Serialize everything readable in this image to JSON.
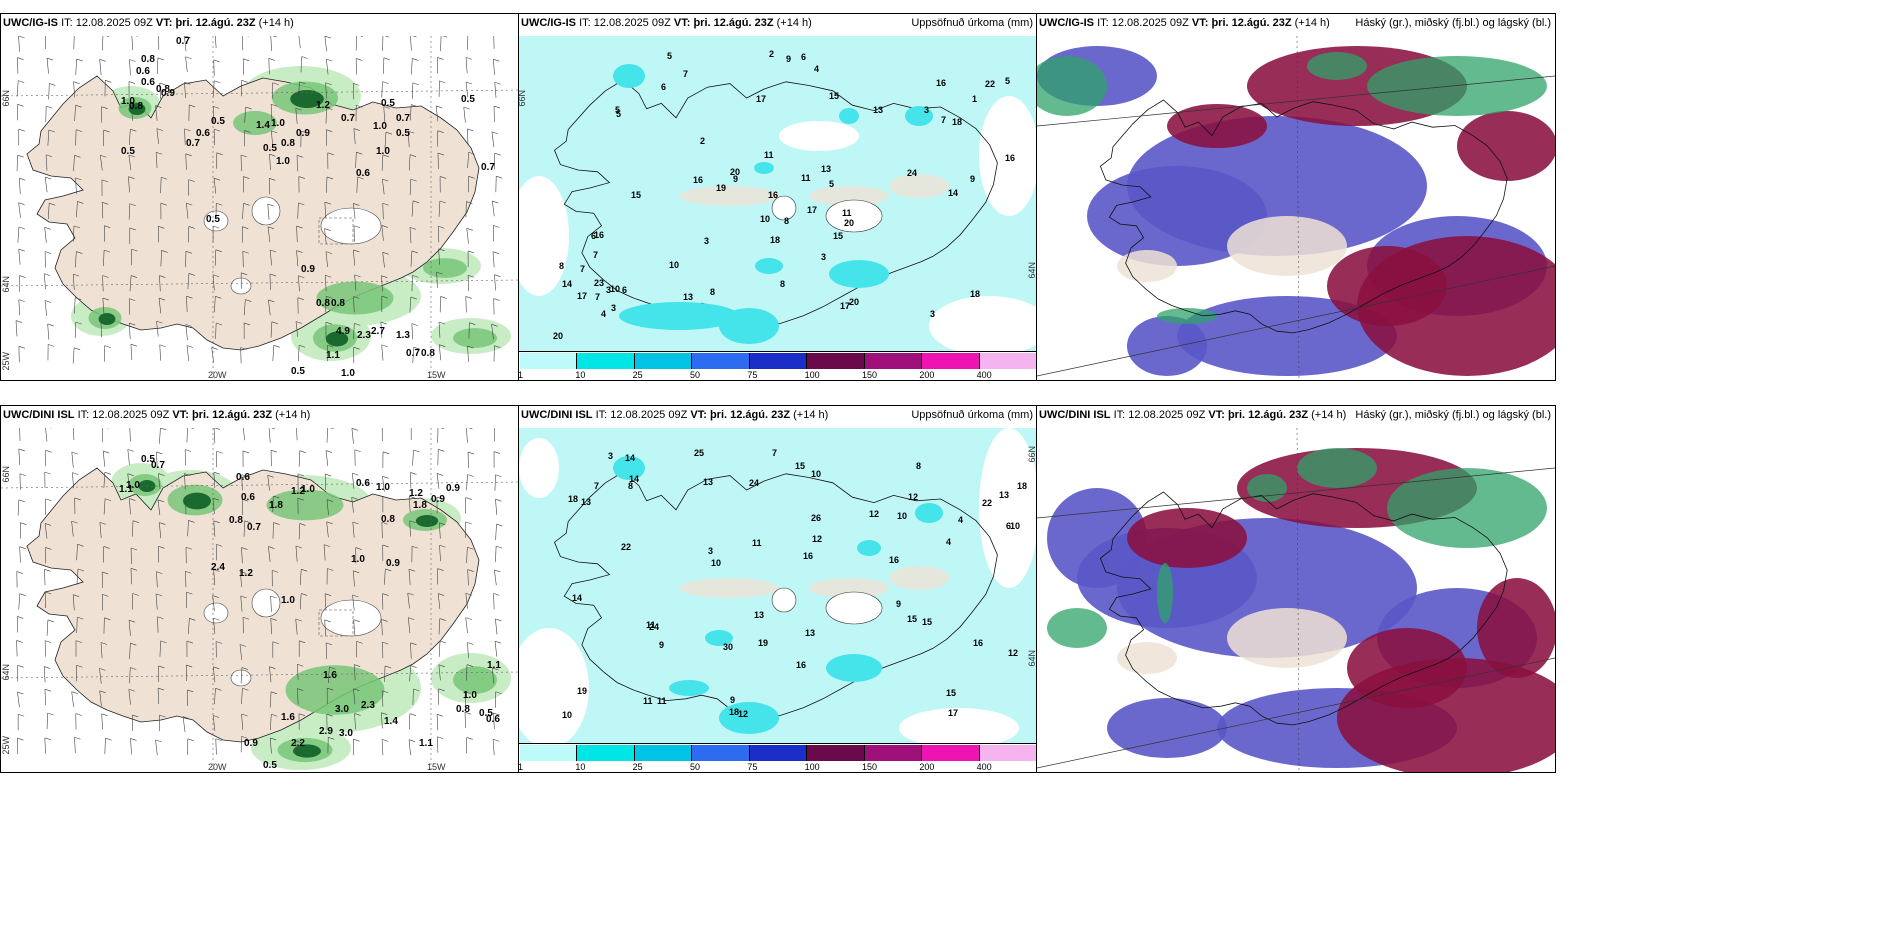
{
  "panels": {
    "top_left": {
      "model": "UWC/IG-IS",
      "it_label": "IT:",
      "it": "12.08.2025 09Z",
      "vt_label": "VT:",
      "vt": "þri. 12.ágú. 23Z",
      "lead": "(+14 h)"
    },
    "top_mid": {
      "model": "UWC/IG-IS",
      "it_label": "IT:",
      "it": "12.08.2025 09Z",
      "vt_label": "VT:",
      "vt": "þri. 12.ágú. 23Z",
      "lead": "(+14 h)",
      "right_title": "Uppsöfnuð úrkoma (mm)"
    },
    "top_right": {
      "model": "UWC/IG-IS",
      "it_label": "IT:",
      "it": "12.08.2025 09Z",
      "vt_label": "VT:",
      "vt": "þri. 12.ágú. 23Z",
      "lead": "(+14 h)",
      "right_title": "Háský (gr.), miðský (fj.bl.) og lágský (bl.)"
    },
    "bot_left": {
      "model": "UWC/DINI ISL",
      "it_label": "IT:",
      "it": "12.08.2025 09Z",
      "vt_label": "VT:",
      "vt": "þri. 12.ágú. 23Z",
      "lead": "(+14 h)"
    },
    "bot_mid": {
      "model": "UWC/DINI ISL",
      "it_label": "IT:",
      "it": "12.08.2025 09Z",
      "vt_label": "VT:",
      "vt": "þri. 12.ágú. 23Z",
      "lead": "(+14 h)",
      "right_title": "Uppsöfnuð úrkoma (mm)"
    },
    "bot_right": {
      "model": "UWC/DINI ISL",
      "it_label": "IT:",
      "it": "12.08.2025 09Z",
      "vt_label": "VT:",
      "vt": "þri. 12.ágú. 23Z",
      "lead": "(+14 h)",
      "right_title": "Háský (gr.), miðský (fj.bl.) og lágský (bl.)"
    }
  },
  "axes": {
    "lat66": "66N",
    "lat64": "64N",
    "lon25": "25W",
    "lon20": "20W",
    "lon15": "15W"
  },
  "colorbar": {
    "labels": [
      "1",
      "10",
      "25",
      "50",
      "75",
      "100",
      "150",
      "200",
      "400"
    ],
    "colors": [
      "#bdfafa",
      "#00e6e6",
      "#00c3e6",
      "#2d6bf0",
      "#1c2ec8",
      "#6a0a4a",
      "#a0107a",
      "#ee14b4",
      "#f5b4f0"
    ]
  },
  "colors": {
    "land": "#efe2d5",
    "green_light": "#c8ecc4",
    "green_mid": "#78c678",
    "green_dark": "#1a6a30",
    "precip_light": "#bff7f7",
    "precip_mid": "#44e4ea",
    "high_cloud": "#2fa36a",
    "mid_cloud": "#8a1040",
    "low_cloud": "#5a58c8"
  },
  "top_left_values": [
    "0.7",
    "0.8",
    "0.6",
    "0.6",
    "0.8",
    "0.9",
    "1.0",
    "0.8",
    "0.5",
    "0.7",
    "0.6",
    "0.5",
    "1.4",
    "1.0",
    "0.5",
    "0.8",
    "0.9",
    "1.2",
    "0.7",
    "1.0",
    "0.5",
    "1.0",
    "0.6",
    "1.0",
    "0.5",
    "0.7",
    "0.5",
    "0.5",
    "0.7",
    "0.9",
    "0.8",
    "0.8",
    "4.9",
    "2.3",
    "2.7",
    "1.3",
    "1.1",
    "0.7",
    "0.8",
    "1.0",
    "0.5"
  ],
  "bot_left_values": [
    "0.5",
    "0.7",
    "1.0",
    "1.1",
    "0.6",
    "1.2",
    "0.6",
    "0.8",
    "0.7",
    "1.8",
    "0.6",
    "1.0",
    "1.8",
    "0.9",
    "1.2",
    "0.8",
    "0.9",
    "1.0",
    "2.4",
    "1.0",
    "0.9",
    "1.2",
    "1.0",
    "1.6",
    "3.0",
    "2.3",
    "1.4",
    "2.9",
    "3.0",
    "2.2",
    "0.9",
    "0.5",
    "1.0",
    "0.8",
    "0.5",
    "0.6",
    "1.1",
    "1.1",
    "1.6"
  ],
  "top_mid_values": [
    "6",
    "9",
    "9",
    "3",
    "7",
    "5",
    "5",
    "13",
    "3",
    "22",
    "3",
    "7",
    "5",
    "5",
    "8",
    "4",
    "3",
    "7",
    "6",
    "17",
    "16",
    "20",
    "24",
    "11",
    "10",
    "18",
    "10",
    "17",
    "19",
    "16",
    "17",
    "18",
    "8",
    "5",
    "3",
    "15",
    "8",
    "20",
    "16",
    "20",
    "23",
    "17",
    "16",
    "15",
    "14",
    "18",
    "13",
    "14",
    "11",
    "20",
    "16",
    "15",
    "13",
    "8",
    "10",
    "7",
    "9",
    "11",
    "7",
    "6",
    "6",
    "3",
    "4",
    "2",
    "2",
    "1"
  ],
  "bot_mid_values": [
    "7",
    "10",
    "16",
    "24",
    "18",
    "9",
    "9",
    "10",
    "13",
    "13",
    "15",
    "26",
    "30",
    "22",
    "18",
    "17",
    "13",
    "4",
    "7",
    "14",
    "25",
    "19",
    "12",
    "15",
    "11",
    "10",
    "16",
    "8",
    "14",
    "12",
    "13",
    "15",
    "12",
    "16",
    "24",
    "22",
    "18",
    "11",
    "12",
    "10",
    "11",
    "13",
    "9",
    "10",
    "12",
    "16",
    "14",
    "19",
    "8",
    "15",
    "11",
    "4",
    "6",
    "3",
    "3"
  ]
}
